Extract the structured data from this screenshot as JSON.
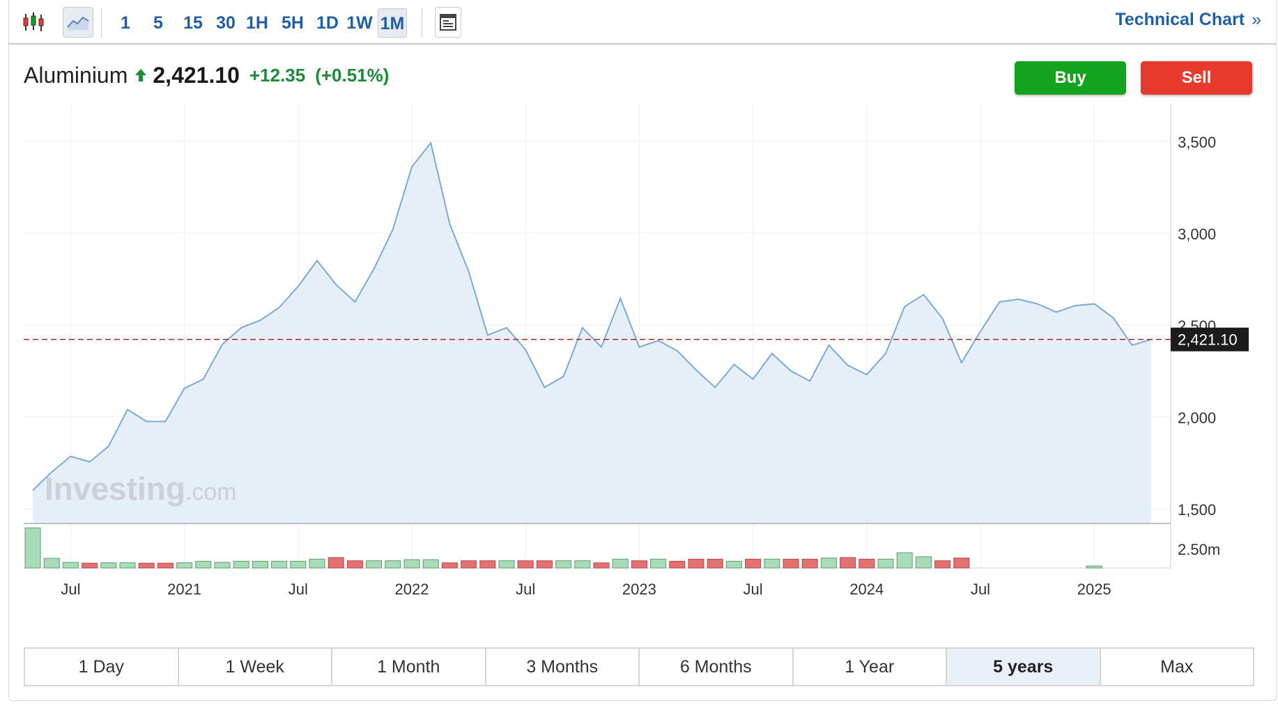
{
  "toolbar": {
    "timeframes": [
      "1",
      "5",
      "15",
      "30",
      "1H",
      "5H",
      "1D",
      "1W",
      "1M"
    ],
    "active_timeframe": "1M",
    "technical_chart_label": "Technical Chart",
    "technical_chart_chevron": "»",
    "icons": [
      "candlestick-icon",
      "area-chart-icon",
      "layout-icon"
    ]
  },
  "quote": {
    "name": "Aluminium",
    "last": "2,421.10",
    "change": "+12.35",
    "change_pct": "(+0.51%)",
    "direction_icon": "up-arrow-icon",
    "up_color": "#1e8a3a"
  },
  "actions": {
    "buy_label": "Buy",
    "sell_label": "Sell",
    "buy_color": "#14a31f",
    "sell_color": "#e8392d"
  },
  "ranges": {
    "items": [
      "1 Day",
      "1 Week",
      "1 Month",
      "3 Months",
      "6 Months",
      "1 Year",
      "5 years",
      "Max"
    ],
    "active": "5 years"
  },
  "watermark": {
    "brand": "Investing",
    "suffix": ".com"
  },
  "chart_data": {
    "type": "area",
    "title": "",
    "xlabel": "",
    "ylabel": "",
    "x_start": "2020-05",
    "x_end": "2025-04",
    "x_ticks": [
      "Jul",
      "2021",
      "Jul",
      "2022",
      "Jul",
      "2023",
      "Jul",
      "2024",
      "Jul",
      "2025"
    ],
    "x_tick_months": [
      "2020-07",
      "2021-01",
      "2021-07",
      "2022-01",
      "2022-07",
      "2023-01",
      "2023-07",
      "2024-01",
      "2024-07",
      "2025-01"
    ],
    "ylim": [
      1420,
      3700
    ],
    "y_ticks": [
      1500,
      2000,
      2500,
      3000,
      3500
    ],
    "y_tick_labels": [
      "1,500",
      "2,000",
      "2,500",
      "3,000",
      "3,500"
    ],
    "grid": true,
    "line_color": "#7aaad6",
    "fill_color": "#e6eef7",
    "last_price_line": {
      "value": 2421.1,
      "label": "2,421.10",
      "color": "#b22222"
    },
    "series": [
      {
        "x": [
          "2020-05",
          "2020-06",
          "2020-07",
          "2020-08",
          "2020-09",
          "2020-10",
          "2020-11",
          "2020-12",
          "2021-01",
          "2021-02",
          "2021-03",
          "2021-04",
          "2021-05",
          "2021-06",
          "2021-07",
          "2021-08",
          "2021-09",
          "2021-10",
          "2021-11",
          "2021-12",
          "2022-01",
          "2022-02",
          "2022-03",
          "2022-04",
          "2022-05",
          "2022-06",
          "2022-07",
          "2022-08",
          "2022-09",
          "2022-10",
          "2022-11",
          "2022-12",
          "2023-01",
          "2023-02",
          "2023-03",
          "2023-04",
          "2023-05",
          "2023-06",
          "2023-07",
          "2023-08",
          "2023-09",
          "2023-10",
          "2023-11",
          "2023-12",
          "2024-01",
          "2024-02",
          "2024-03",
          "2024-04",
          "2024-05",
          "2024-06",
          "2024-07",
          "2024-08",
          "2024-09",
          "2024-10",
          "2024-11",
          "2024-12",
          "2025-01",
          "2025-02",
          "2025-03",
          "2025-04"
        ],
        "values": [
          1600,
          1700,
          1785,
          1755,
          1840,
          2040,
          1975,
          1975,
          2155,
          2205,
          2395,
          2485,
          2525,
          2595,
          2710,
          2850,
          2720,
          2625,
          2805,
          3020,
          3360,
          3490,
          3050,
          2790,
          2445,
          2485,
          2365,
          2160,
          2220,
          2485,
          2380,
          2645,
          2380,
          2415,
          2360,
          2255,
          2160,
          2285,
          2205,
          2345,
          2250,
          2195,
          2390,
          2280,
          2230,
          2345,
          2600,
          2665,
          2535,
          2295,
          2465,
          2625,
          2640,
          2615,
          2570,
          2605,
          2615,
          2540,
          2390,
          2421
        ]
      }
    ],
    "volume": {
      "axis_label": "2.50m",
      "up_color": "#a8dbb8",
      "down_color": "#e27171",
      "bars": [
        {
          "m": "2020-05",
          "v": 2.5,
          "up": true
        },
        {
          "m": "2020-06",
          "v": 0.6,
          "up": true
        },
        {
          "m": "2020-07",
          "v": 0.35,
          "up": true
        },
        {
          "m": "2020-08",
          "v": 0.3,
          "up": false
        },
        {
          "m": "2020-09",
          "v": 0.33,
          "up": true
        },
        {
          "m": "2020-10",
          "v": 0.33,
          "up": true
        },
        {
          "m": "2020-11",
          "v": 0.3,
          "up": false
        },
        {
          "m": "2020-12",
          "v": 0.3,
          "up": false
        },
        {
          "m": "2021-01",
          "v": 0.33,
          "up": true
        },
        {
          "m": "2021-02",
          "v": 0.42,
          "up": true
        },
        {
          "m": "2021-03",
          "v": 0.35,
          "up": true
        },
        {
          "m": "2021-04",
          "v": 0.42,
          "up": true
        },
        {
          "m": "2021-05",
          "v": 0.42,
          "up": true
        },
        {
          "m": "2021-06",
          "v": 0.42,
          "up": true
        },
        {
          "m": "2021-07",
          "v": 0.42,
          "up": true
        },
        {
          "m": "2021-08",
          "v": 0.55,
          "up": true
        },
        {
          "m": "2021-09",
          "v": 0.65,
          "up": false
        },
        {
          "m": "2021-10",
          "v": 0.45,
          "up": false
        },
        {
          "m": "2021-11",
          "v": 0.45,
          "up": true
        },
        {
          "m": "2021-12",
          "v": 0.45,
          "up": true
        },
        {
          "m": "2022-01",
          "v": 0.52,
          "up": true
        },
        {
          "m": "2022-02",
          "v": 0.52,
          "up": true
        },
        {
          "m": "2022-03",
          "v": 0.32,
          "up": false
        },
        {
          "m": "2022-04",
          "v": 0.45,
          "up": false
        },
        {
          "m": "2022-05",
          "v": 0.45,
          "up": false
        },
        {
          "m": "2022-06",
          "v": 0.45,
          "up": true
        },
        {
          "m": "2022-07",
          "v": 0.45,
          "up": false
        },
        {
          "m": "2022-08",
          "v": 0.45,
          "up": false
        },
        {
          "m": "2022-09",
          "v": 0.45,
          "up": true
        },
        {
          "m": "2022-10",
          "v": 0.45,
          "up": true
        },
        {
          "m": "2022-11",
          "v": 0.32,
          "up": false
        },
        {
          "m": "2022-12",
          "v": 0.55,
          "up": true
        },
        {
          "m": "2023-01",
          "v": 0.45,
          "up": false
        },
        {
          "m": "2023-02",
          "v": 0.55,
          "up": true
        },
        {
          "m": "2023-03",
          "v": 0.42,
          "up": false
        },
        {
          "m": "2023-04",
          "v": 0.55,
          "up": false
        },
        {
          "m": "2023-05",
          "v": 0.55,
          "up": false
        },
        {
          "m": "2023-06",
          "v": 0.42,
          "up": true
        },
        {
          "m": "2023-07",
          "v": 0.55,
          "up": false
        },
        {
          "m": "2023-08",
          "v": 0.55,
          "up": true
        },
        {
          "m": "2023-09",
          "v": 0.55,
          "up": false
        },
        {
          "m": "2023-10",
          "v": 0.55,
          "up": false
        },
        {
          "m": "2023-11",
          "v": 0.62,
          "up": true
        },
        {
          "m": "2023-12",
          "v": 0.65,
          "up": false
        },
        {
          "m": "2024-01",
          "v": 0.55,
          "up": false
        },
        {
          "m": "2024-02",
          "v": 0.55,
          "up": true
        },
        {
          "m": "2024-03",
          "v": 0.95,
          "up": true
        },
        {
          "m": "2024-04",
          "v": 0.7,
          "up": true
        },
        {
          "m": "2024-05",
          "v": 0.45,
          "up": false
        },
        {
          "m": "2024-06",
          "v": 0.62,
          "up": false
        },
        {
          "m": "2025-01",
          "v": 0.13,
          "up": true
        }
      ]
    }
  }
}
